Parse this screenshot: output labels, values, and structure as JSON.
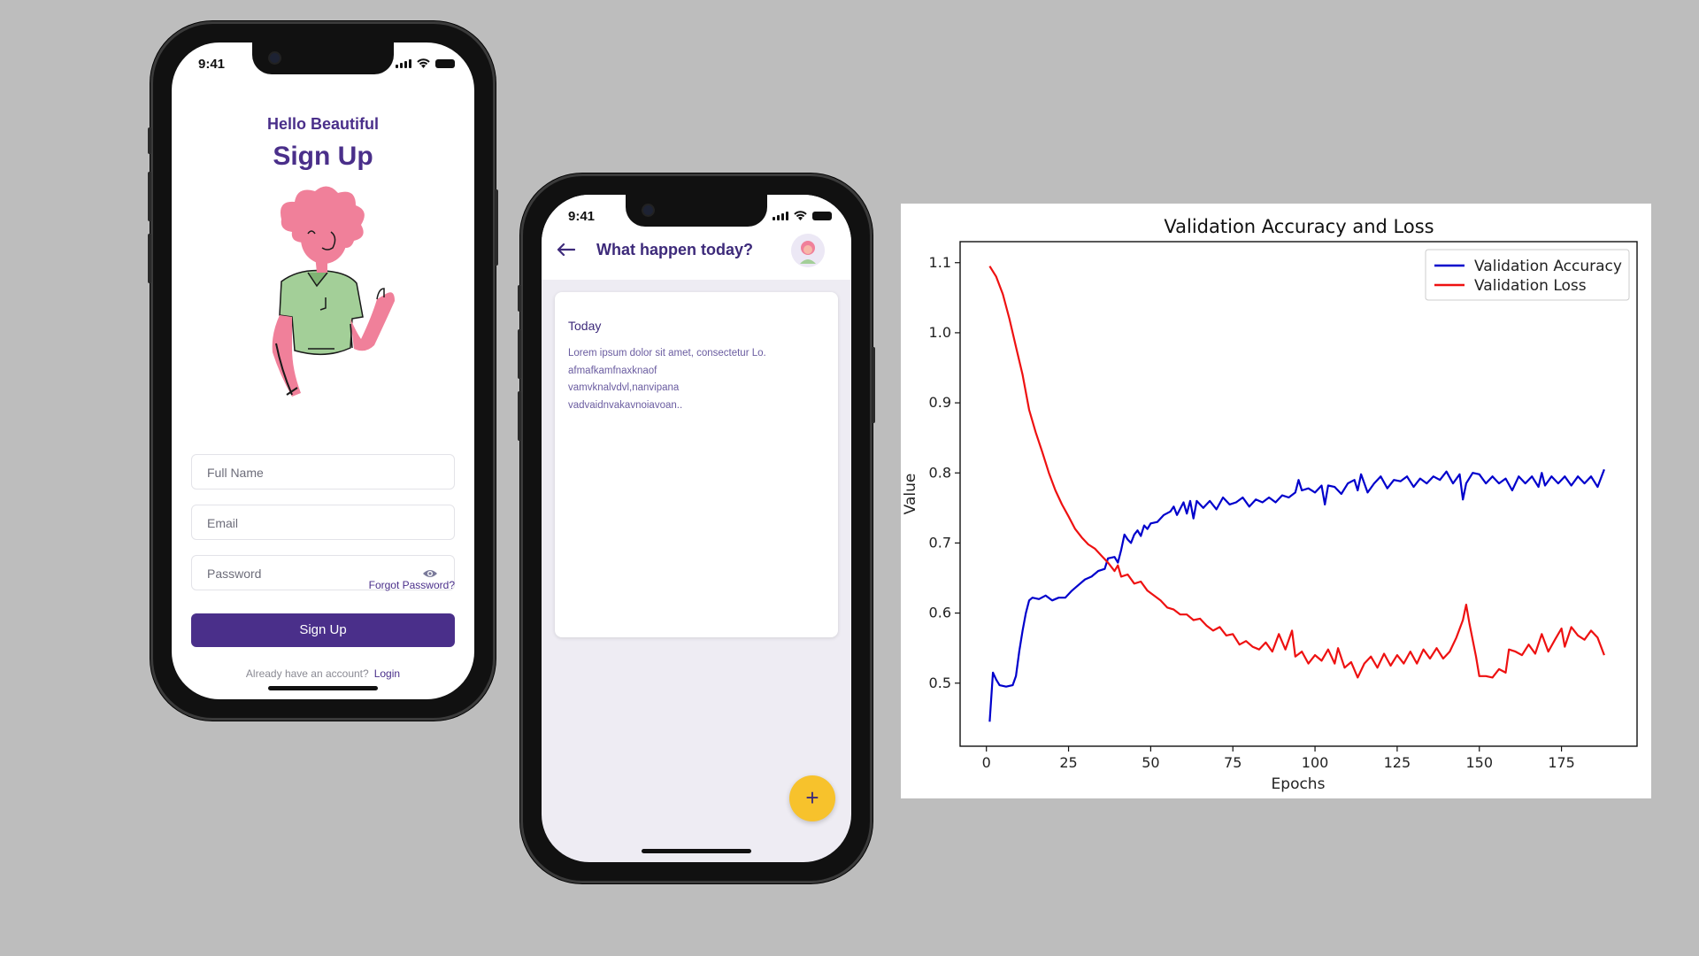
{
  "phone1": {
    "status_time": "9:41",
    "greeting": "Hello Beautiful",
    "title": "Sign Up",
    "fields": {
      "full_name_placeholder": "Full Name",
      "email_placeholder": "Email",
      "password_placeholder": "Password"
    },
    "forgot_password": "Forgot Password?",
    "sign_up_button": "Sign Up",
    "already_text": "Already have an account?",
    "login_link": "Login",
    "icons": [
      "eye-icon",
      "wifi-icon",
      "signal-icon",
      "battery-icon"
    ]
  },
  "phone2": {
    "status_time": "9:41",
    "title": "What happen today?",
    "card": {
      "heading": "Today",
      "body": "Lorem ipsum dolor sit amet, consectetur Lo.\nafmafkamfnaxknaof\nvamvknalvdvl,nanvipana\nvadvaidnvakavnoiavoan.."
    },
    "fab_label": "+",
    "fab_color": "#f7c22c",
    "icons": [
      "back-arrow-icon",
      "avatar"
    ]
  },
  "colors": {
    "brand": "#4a2f8a",
    "background": "#bdbdbd"
  },
  "chart_data": {
    "type": "line",
    "title": "Validation Accuracy and Loss",
    "xlabel": "Epochs",
    "ylabel": "Value",
    "xlim": [
      -8,
      198
    ],
    "ylim": [
      0.41,
      1.13
    ],
    "xticks": [
      0,
      25,
      50,
      75,
      100,
      125,
      150,
      175
    ],
    "yticks": [
      0.5,
      0.6,
      0.7,
      0.8,
      0.9,
      1.0,
      1.1
    ],
    "legend_position": "top-right",
    "grid": false,
    "series": [
      {
        "name": "Validation Accuracy",
        "color": "#0000cc",
        "points": [
          [
            1,
            0.445
          ],
          [
            2,
            0.515
          ],
          [
            3,
            0.505
          ],
          [
            4,
            0.497
          ],
          [
            6,
            0.495
          ],
          [
            8,
            0.497
          ],
          [
            9,
            0.51
          ],
          [
            10,
            0.545
          ],
          [
            11,
            0.575
          ],
          [
            12,
            0.6
          ],
          [
            13,
            0.618
          ],
          [
            14,
            0.622
          ],
          [
            16,
            0.62
          ],
          [
            18,
            0.625
          ],
          [
            20,
            0.618
          ],
          [
            22,
            0.622
          ],
          [
            24,
            0.622
          ],
          [
            26,
            0.632
          ],
          [
            28,
            0.64
          ],
          [
            30,
            0.648
          ],
          [
            32,
            0.652
          ],
          [
            34,
            0.66
          ],
          [
            36,
            0.663
          ],
          [
            37,
            0.678
          ],
          [
            39,
            0.68
          ],
          [
            40,
            0.672
          ],
          [
            41,
            0.69
          ],
          [
            42,
            0.712
          ],
          [
            43,
            0.705
          ],
          [
            44,
            0.7
          ],
          [
            45,
            0.712
          ],
          [
            46,
            0.718
          ],
          [
            47,
            0.71
          ],
          [
            48,
            0.725
          ],
          [
            49,
            0.72
          ],
          [
            50,
            0.728
          ],
          [
            52,
            0.73
          ],
          [
            54,
            0.74
          ],
          [
            56,
            0.745
          ],
          [
            57,
            0.752
          ],
          [
            58,
            0.74
          ],
          [
            60,
            0.758
          ],
          [
            61,
            0.742
          ],
          [
            62,
            0.76
          ],
          [
            63,
            0.735
          ],
          [
            64,
            0.76
          ],
          [
            66,
            0.75
          ],
          [
            68,
            0.76
          ],
          [
            70,
            0.748
          ],
          [
            72,
            0.765
          ],
          [
            74,
            0.755
          ],
          [
            76,
            0.758
          ],
          [
            78,
            0.765
          ],
          [
            80,
            0.752
          ],
          [
            82,
            0.762
          ],
          [
            84,
            0.758
          ],
          [
            86,
            0.765
          ],
          [
            88,
            0.758
          ],
          [
            90,
            0.768
          ],
          [
            92,
            0.765
          ],
          [
            94,
            0.772
          ],
          [
            95,
            0.79
          ],
          [
            96,
            0.775
          ],
          [
            98,
            0.778
          ],
          [
            100,
            0.772
          ],
          [
            102,
            0.782
          ],
          [
            103,
            0.755
          ],
          [
            104,
            0.782
          ],
          [
            106,
            0.78
          ],
          [
            108,
            0.77
          ],
          [
            110,
            0.785
          ],
          [
            112,
            0.79
          ],
          [
            113,
            0.775
          ],
          [
            114,
            0.798
          ],
          [
            116,
            0.772
          ],
          [
            118,
            0.785
          ],
          [
            120,
            0.795
          ],
          [
            122,
            0.778
          ],
          [
            124,
            0.79
          ],
          [
            126,
            0.788
          ],
          [
            128,
            0.795
          ],
          [
            130,
            0.78
          ],
          [
            132,
            0.792
          ],
          [
            134,
            0.785
          ],
          [
            136,
            0.795
          ],
          [
            138,
            0.79
          ],
          [
            140,
            0.802
          ],
          [
            142,
            0.785
          ],
          [
            144,
            0.798
          ],
          [
            145,
            0.762
          ],
          [
            146,
            0.785
          ],
          [
            148,
            0.8
          ],
          [
            150,
            0.798
          ],
          [
            152,
            0.785
          ],
          [
            154,
            0.795
          ],
          [
            156,
            0.785
          ],
          [
            158,
            0.792
          ],
          [
            160,
            0.775
          ],
          [
            162,
            0.795
          ],
          [
            164,
            0.785
          ],
          [
            166,
            0.795
          ],
          [
            168,
            0.78
          ],
          [
            169,
            0.8
          ],
          [
            170,
            0.782
          ],
          [
            172,
            0.795
          ],
          [
            174,
            0.785
          ],
          [
            176,
            0.795
          ],
          [
            178,
            0.782
          ],
          [
            180,
            0.795
          ],
          [
            182,
            0.785
          ],
          [
            184,
            0.795
          ],
          [
            186,
            0.78
          ],
          [
            188,
            0.805
          ]
        ]
      },
      {
        "name": "Validation Loss",
        "color": "#ee1111",
        "points": [
          [
            1,
            1.095
          ],
          [
            3,
            1.08
          ],
          [
            5,
            1.055
          ],
          [
            7,
            1.02
          ],
          [
            9,
            0.98
          ],
          [
            11,
            0.94
          ],
          [
            13,
            0.89
          ],
          [
            15,
            0.858
          ],
          [
            17,
            0.83
          ],
          [
            19,
            0.8
          ],
          [
            21,
            0.775
          ],
          [
            23,
            0.755
          ],
          [
            25,
            0.738
          ],
          [
            27,
            0.72
          ],
          [
            29,
            0.708
          ],
          [
            31,
            0.698
          ],
          [
            33,
            0.692
          ],
          [
            35,
            0.682
          ],
          [
            37,
            0.672
          ],
          [
            39,
            0.66
          ],
          [
            40,
            0.668
          ],
          [
            41,
            0.652
          ],
          [
            43,
            0.655
          ],
          [
            45,
            0.642
          ],
          [
            47,
            0.645
          ],
          [
            49,
            0.632
          ],
          [
            51,
            0.625
          ],
          [
            53,
            0.618
          ],
          [
            55,
            0.608
          ],
          [
            57,
            0.605
          ],
          [
            59,
            0.598
          ],
          [
            61,
            0.598
          ],
          [
            63,
            0.59
          ],
          [
            65,
            0.592
          ],
          [
            67,
            0.582
          ],
          [
            69,
            0.575
          ],
          [
            71,
            0.58
          ],
          [
            73,
            0.568
          ],
          [
            75,
            0.57
          ],
          [
            77,
            0.555
          ],
          [
            79,
            0.56
          ],
          [
            81,
            0.552
          ],
          [
            83,
            0.548
          ],
          [
            85,
            0.558
          ],
          [
            87,
            0.545
          ],
          [
            89,
            0.57
          ],
          [
            91,
            0.548
          ],
          [
            93,
            0.575
          ],
          [
            94,
            0.538
          ],
          [
            96,
            0.545
          ],
          [
            98,
            0.528
          ],
          [
            100,
            0.54
          ],
          [
            102,
            0.532
          ],
          [
            104,
            0.548
          ],
          [
            106,
            0.528
          ],
          [
            107,
            0.55
          ],
          [
            109,
            0.522
          ],
          [
            111,
            0.53
          ],
          [
            113,
            0.508
          ],
          [
            115,
            0.528
          ],
          [
            117,
            0.538
          ],
          [
            119,
            0.522
          ],
          [
            121,
            0.542
          ],
          [
            123,
            0.525
          ],
          [
            125,
            0.54
          ],
          [
            127,
            0.528
          ],
          [
            129,
            0.545
          ],
          [
            131,
            0.528
          ],
          [
            133,
            0.548
          ],
          [
            135,
            0.535
          ],
          [
            137,
            0.55
          ],
          [
            139,
            0.535
          ],
          [
            141,
            0.545
          ],
          [
            143,
            0.565
          ],
          [
            145,
            0.59
          ],
          [
            146,
            0.612
          ],
          [
            147,
            0.585
          ],
          [
            149,
            0.538
          ],
          [
            150,
            0.51
          ],
          [
            152,
            0.51
          ],
          [
            154,
            0.508
          ],
          [
            156,
            0.52
          ],
          [
            158,
            0.515
          ],
          [
            159,
            0.548
          ],
          [
            161,
            0.545
          ],
          [
            163,
            0.54
          ],
          [
            165,
            0.555
          ],
          [
            167,
            0.542
          ],
          [
            169,
            0.57
          ],
          [
            171,
            0.545
          ],
          [
            173,
            0.562
          ],
          [
            175,
            0.578
          ],
          [
            176,
            0.552
          ],
          [
            178,
            0.58
          ],
          [
            180,
            0.568
          ],
          [
            182,
            0.562
          ],
          [
            184,
            0.575
          ],
          [
            186,
            0.565
          ],
          [
            188,
            0.54
          ]
        ]
      }
    ]
  }
}
